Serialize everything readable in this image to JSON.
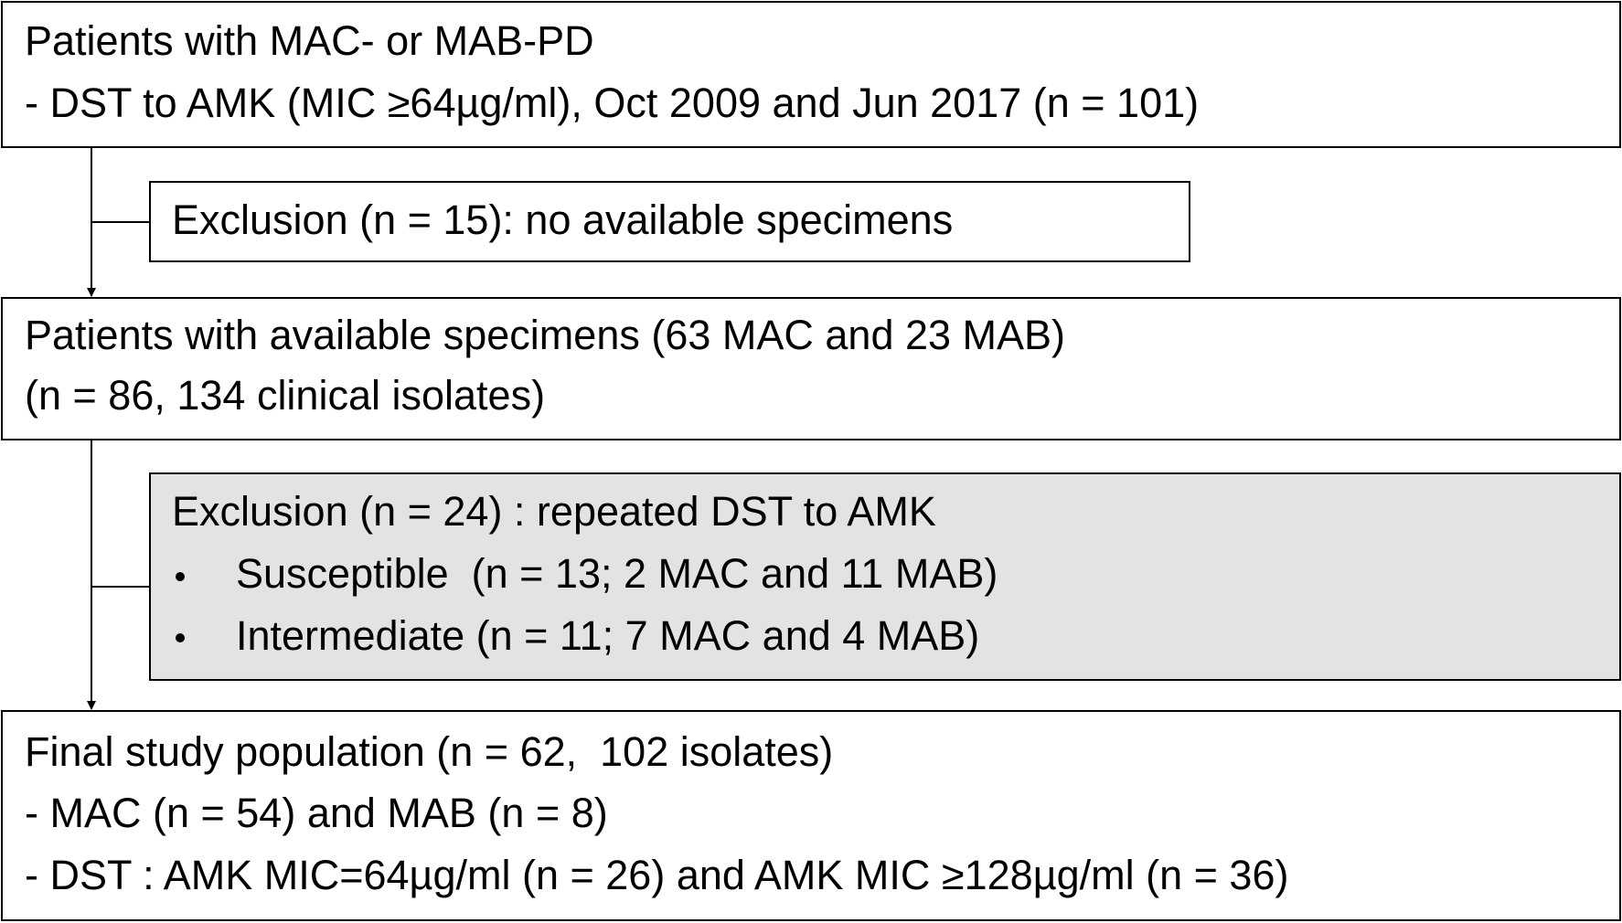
{
  "nodes": [
    {
      "lines": [
        "Patients with MAC- or MAB-PD",
        "- DST to AMK (MIC ≥64µg/ml), Oct 2009 and Jun 2017 (n = 101)"
      ]
    },
    {
      "lines": [
        "Exclusion (n = 15): no available specimens"
      ]
    },
    {
      "lines": [
        "Patients with available specimens (63 MAC and 23 MAB)",
        "(n = 86, 134 clinical isolates)"
      ]
    },
    {
      "lines": [
        "Exclusion (n = 24) : repeated DST to AMK",
        "Susceptible  (n = 13; 2 MAC and 11 MAB)",
        "Intermediate (n = 11; 7 MAC and 4 MAB)"
      ]
    },
    {
      "lines": [
        "Final study population (n = 62,  102 isolates)",
        "- MAC (n = 54) and MAB (n = 8)",
        "- DST : AMK MIC=64µg/ml (n = 26) and AMK MIC ≥128µg/ml (n = 36)"
      ]
    }
  ]
}
